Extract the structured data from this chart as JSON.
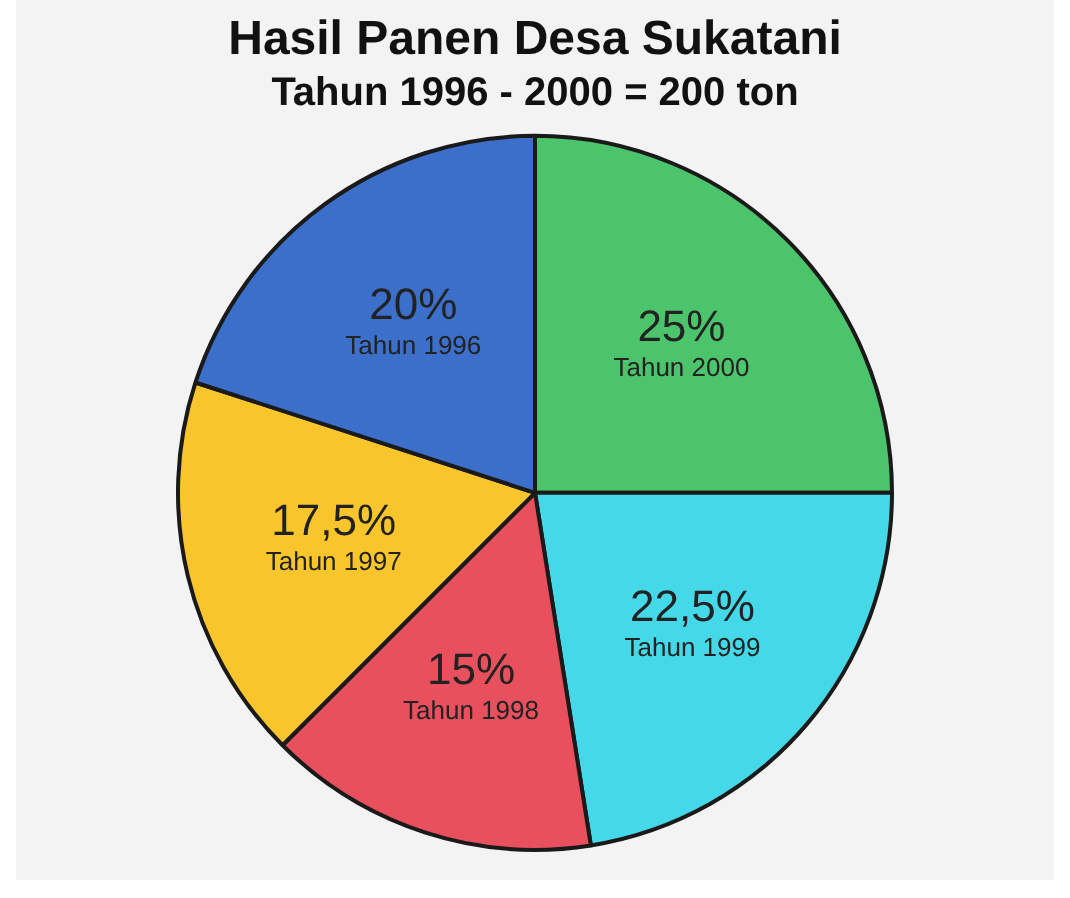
{
  "chart_data": {
    "type": "pie",
    "title": "Hasil Panen Desa Sukatani",
    "subtitle": "Tahun 1996 - 2000 = 200 ton",
    "categories": [
      "Tahun 2000",
      "Tahun 1999",
      "Tahun 1998",
      "Tahun 1997",
      "Tahun 1996"
    ],
    "values": [
      25,
      22.5,
      15,
      17.5,
      20
    ],
    "value_labels": [
      "25%",
      "22,5%",
      "15%",
      "17,5%",
      "20%"
    ],
    "colors": [
      "#4cc46c",
      "#44d8e8",
      "#e8505e",
      "#f9c52c",
      "#3c6fc9"
    ],
    "legend": false
  }
}
